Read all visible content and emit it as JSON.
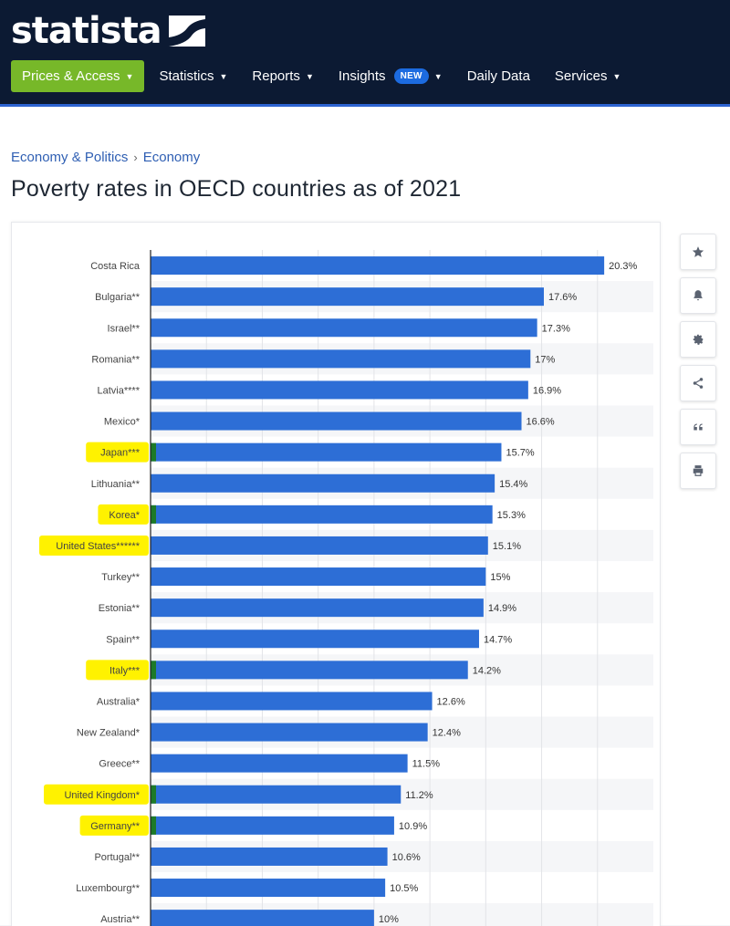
{
  "brand": {
    "name": "statista"
  },
  "nav": {
    "items": [
      {
        "label": "Prices & Access"
      },
      {
        "label": "Statistics"
      },
      {
        "label": "Reports"
      },
      {
        "label": "Insights",
        "badge": "NEW"
      },
      {
        "label": "Daily Data"
      },
      {
        "label": "Services"
      }
    ]
  },
  "breadcrumb": {
    "items": [
      "Economy & Politics",
      "Economy"
    ],
    "separator": "›"
  },
  "page": {
    "title": "Poverty rates in OECD countries as of 2021"
  },
  "tools": {
    "icons": [
      "star-icon",
      "bell-icon",
      "gear-icon",
      "share-icon",
      "quote-icon",
      "print-icon"
    ]
  },
  "colors": {
    "bar": "#2d6ed6",
    "highlight": "#fff200",
    "accent_stub": "#1d7a28",
    "nav_bg": "#0c1a33",
    "nav_active": "#77b829"
  },
  "chart_data": {
    "type": "bar",
    "orientation": "horizontal",
    "title": "Poverty rates in OECD countries as of 2021",
    "categories": [
      "Costa Rica",
      "Bulgaria**",
      "Israel**",
      "Romania**",
      "Latvia****",
      "Mexico*",
      "Japan***",
      "Lithuania**",
      "Korea*",
      "United States******",
      "Turkey**",
      "Estonia**",
      "Spain**",
      "Italy***",
      "Australia*",
      "New Zealand*",
      "Greece**",
      "United Kingdom*",
      "Germany**",
      "Portugal**",
      "Luxembourg**",
      "Austria**"
    ],
    "values": [
      20.3,
      17.6,
      17.3,
      17,
      16.9,
      16.6,
      15.7,
      15.4,
      15.3,
      15.1,
      15,
      14.9,
      14.7,
      14.2,
      12.6,
      12.4,
      11.5,
      11.2,
      10.9,
      10.6,
      10.5,
      10
    ],
    "value_labels": [
      "20.3%",
      "17.6%",
      "17.3%",
      "17%",
      "16.9%",
      "16.6%",
      "15.7%",
      "15.4%",
      "15.3%",
      "15.1%",
      "15%",
      "14.9%",
      "14.7%",
      "14.2%",
      "12.6%",
      "12.4%",
      "11.5%",
      "11.2%",
      "10.9%",
      "10.6%",
      "10.5%",
      "10%"
    ],
    "highlighted": [
      "Japan***",
      "Korea*",
      "United States******",
      "Italy***",
      "United Kingdom*",
      "Germany**"
    ],
    "accent_marked": [
      "Japan***",
      "Korea*",
      "Italy***",
      "United Kingdom*",
      "Germany**"
    ],
    "xlim": [
      0,
      22.5
    ],
    "gridlines": [
      2.5,
      5,
      7.5,
      10,
      12.5,
      15,
      17.5,
      20
    ],
    "grid": true,
    "xlabel": "",
    "ylabel": ""
  }
}
